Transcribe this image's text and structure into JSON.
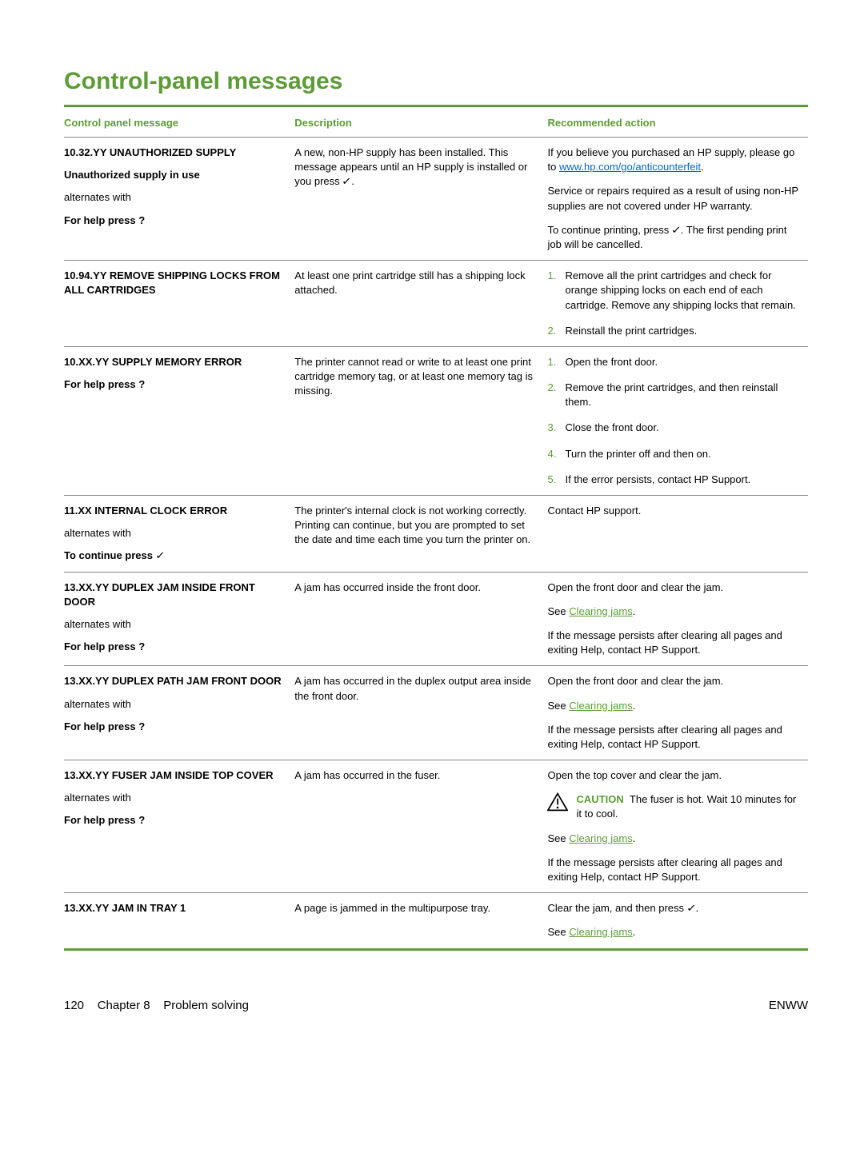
{
  "colors": {
    "accent": "#5d9b35",
    "link_blue": "#0066cc",
    "text": "#000000",
    "rule": "#888888",
    "background": "#ffffff"
  },
  "typography": {
    "h1_fontsize_pt": 22,
    "body_fontsize_pt": 10,
    "font_family": "Arial"
  },
  "heading": "Control-panel messages",
  "table": {
    "headers": {
      "message": "Control panel message",
      "description": "Description",
      "action": "Recommended action"
    },
    "rows": [
      {
        "message_lines": [
          {
            "text": "10.32.YY UNAUTHORIZED SUPPLY",
            "bold": true
          },
          {
            "text": "Unauthorized supply in use",
            "bold": true
          },
          {
            "text": "alternates with",
            "bold": false
          },
          {
            "text": "For help press",
            "bold": true,
            "help_icon": true
          }
        ],
        "description": "A new, non-HP supply has been installed. This message appears until an HP supply is installed or you press [check].",
        "action_paragraphs": [
          {
            "pre": "If you believe you purchased an HP supply, please go to ",
            "link_text": "www.hp.com/go/anticounterfeit",
            "link_style": "blue",
            "post": "."
          },
          {
            "text": "Service or repairs required as a result of using non-HP supplies are not covered under HP warranty."
          },
          {
            "text": "To continue printing, press [check]. The first pending print job will be cancelled."
          }
        ]
      },
      {
        "message_lines": [
          {
            "text": "10.94.YY REMOVE SHIPPING LOCKS FROM ALL CARTRIDGES",
            "bold": true
          }
        ],
        "description": "At least one print cartridge still has a shipping lock attached.",
        "action_steps": [
          "Remove all the print cartridges and check for orange shipping locks on each end of each cartridge. Remove any shipping locks that remain.",
          "Reinstall the print cartridges."
        ]
      },
      {
        "message_lines": [
          {
            "text": "10.XX.YY SUPPLY MEMORY ERROR",
            "bold": true
          },
          {
            "text": "For help press",
            "bold": true,
            "help_icon": true
          }
        ],
        "description": "The printer cannot read or write to at least one print cartridge memory tag, or at least one memory tag is missing.",
        "action_steps": [
          "Open the front door.",
          "Remove the print cartridges, and then reinstall them.",
          "Close the front door.",
          "Turn the printer off and then on.",
          "If the error persists, contact HP Support."
        ]
      },
      {
        "message_lines": [
          {
            "text": "11.XX INTERNAL CLOCK ERROR",
            "bold": true
          },
          {
            "text": "alternates with",
            "bold": false
          },
          {
            "text": "To continue press",
            "bold": true,
            "check_icon": true
          }
        ],
        "description": "The printer's internal clock is not working correctly. Printing can continue, but you are prompted to set the date and time each time you turn the printer on.",
        "action_paragraphs": [
          {
            "text": "Contact HP support."
          }
        ]
      },
      {
        "message_lines": [
          {
            "text": "13.XX.YY DUPLEX JAM INSIDE FRONT DOOR",
            "bold": true
          },
          {
            "text": "alternates with",
            "bold": false
          },
          {
            "text": "For help press",
            "bold": true,
            "help_icon": true
          }
        ],
        "description": "A jam has occurred inside the front door.",
        "action_paragraphs": [
          {
            "text": "Open the front door and clear the jam."
          },
          {
            "pre": "See ",
            "link_text": "Clearing jams",
            "link_style": "green",
            "post": "."
          },
          {
            "text": "If the message persists after clearing all pages and exiting Help, contact HP Support."
          }
        ]
      },
      {
        "message_lines": [
          {
            "text": "13.XX.YY DUPLEX PATH JAM FRONT DOOR",
            "bold": true
          },
          {
            "text": "alternates with",
            "bold": false
          },
          {
            "text": "For help press",
            "bold": true,
            "help_icon": true
          }
        ],
        "description": "A jam has occurred in the duplex output area inside the front door.",
        "action_paragraphs": [
          {
            "text": "Open the front door and clear the jam."
          },
          {
            "pre": "See ",
            "link_text": "Clearing jams",
            "link_style": "green",
            "post": "."
          },
          {
            "text": "If the message persists after clearing all pages and exiting Help, contact HP Support."
          }
        ]
      },
      {
        "message_lines": [
          {
            "text": "13.XX.YY FUSER JAM INSIDE TOP COVER",
            "bold": true
          },
          {
            "text": "alternates with",
            "bold": false
          },
          {
            "text": "For help press",
            "bold": true,
            "help_icon": true
          }
        ],
        "description": "A jam has occurred in the fuser.",
        "action_paragraphs": [
          {
            "text": "Open the top cover and clear the jam."
          },
          {
            "caution_label": "CAUTION",
            "caution_text": "The fuser is hot. Wait 10 minutes for it to cool."
          },
          {
            "pre": "See ",
            "link_text": "Clearing jams",
            "link_style": "green",
            "post": "."
          },
          {
            "text": "If the message persists after clearing all pages and exiting Help, contact HP Support."
          }
        ]
      },
      {
        "message_lines": [
          {
            "text": "13.XX.YY JAM IN TRAY 1",
            "bold": true
          }
        ],
        "description": "A page is jammed in the multipurpose tray.",
        "action_paragraphs": [
          {
            "text": "Clear the jam, and then press [check]."
          },
          {
            "pre": "See ",
            "link_text": "Clearing jams",
            "link_style": "green",
            "post": "."
          }
        ]
      }
    ]
  },
  "footer": {
    "page_number": "120",
    "chapter_label": "Chapter 8",
    "section_label": "Problem solving",
    "right": "ENWW"
  }
}
